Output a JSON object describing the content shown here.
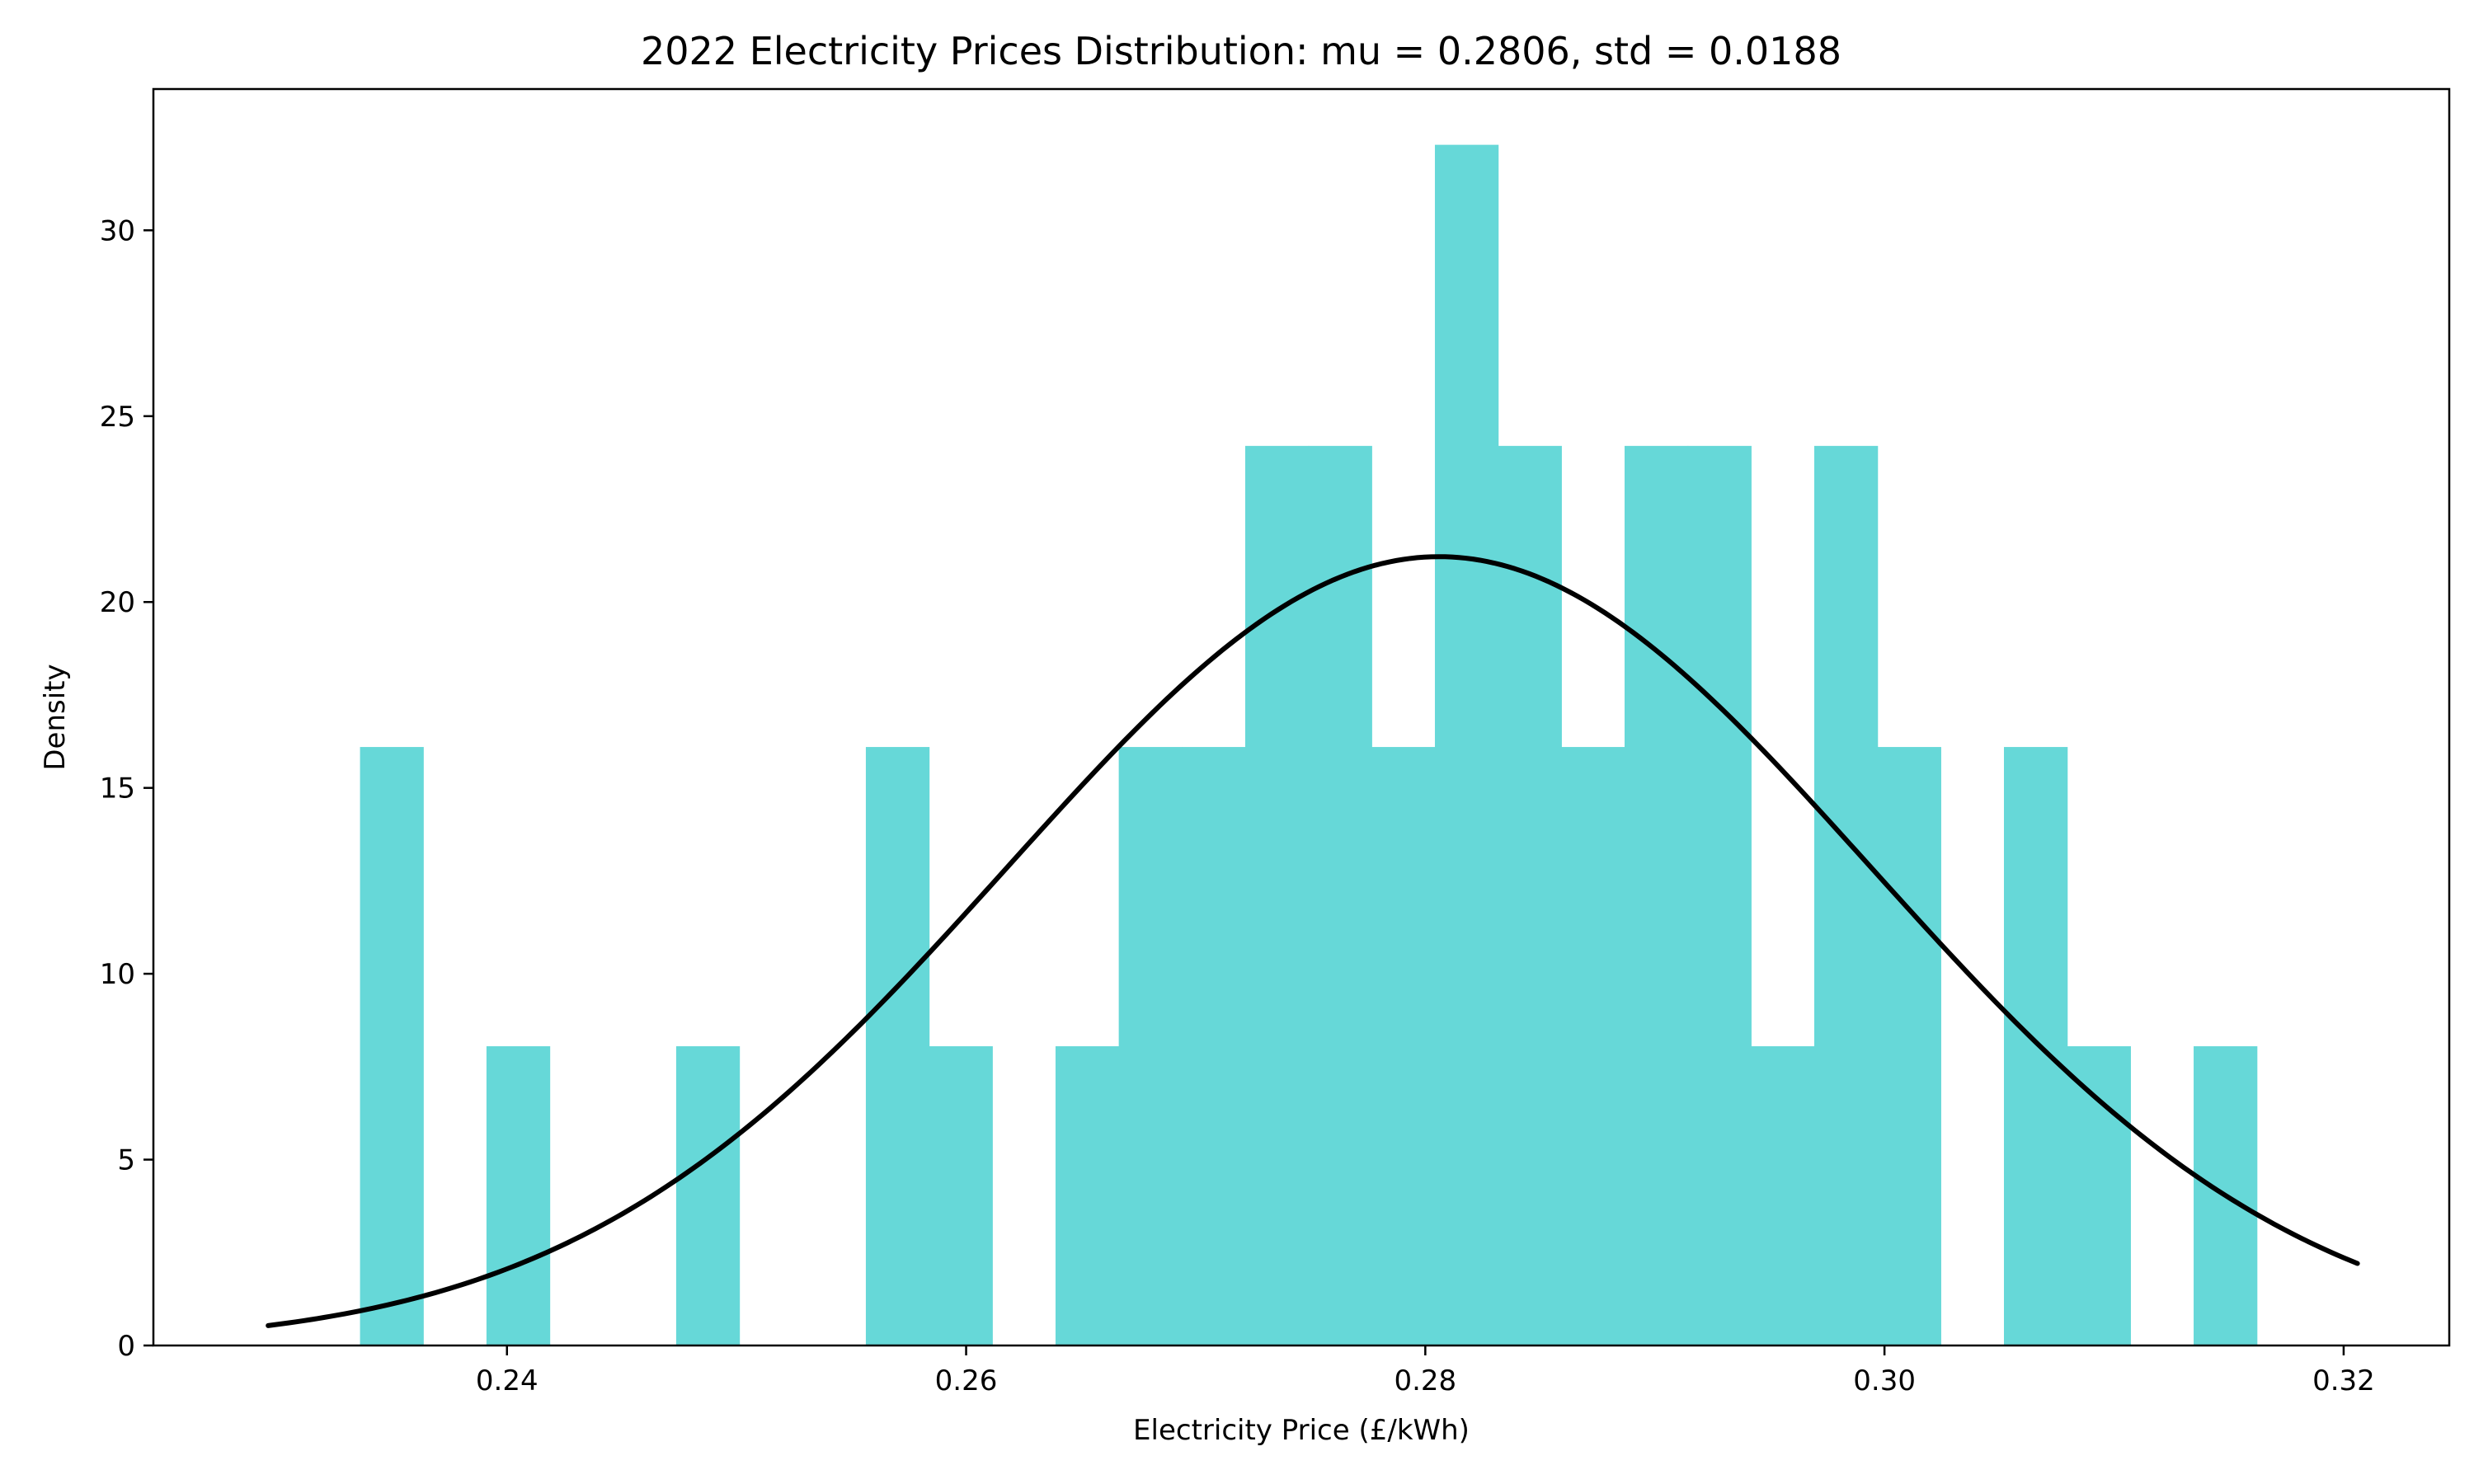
{
  "chart_data": {
    "type": "bar",
    "subtype": "histogram-with-normal-fit",
    "title": "2022 Electricity Prices Distribution: mu = 0.2806, std = 0.0188",
    "xlabel": "Electricity Price (£/kWh)",
    "ylabel": "Density",
    "xlim": [
      0.2246,
      0.3246
    ],
    "ylim": [
      0,
      33.8
    ],
    "xticks": [
      0.24,
      0.26,
      0.28,
      0.3,
      0.32
    ],
    "xtick_labels": [
      "0.24",
      "0.26",
      "0.28",
      "0.30",
      "0.32"
    ],
    "yticks": [
      0,
      5,
      10,
      15,
      20,
      25,
      30
    ],
    "ytick_labels": [
      "0",
      "5",
      "10",
      "15",
      "20",
      "25",
      "30"
    ],
    "grid": false,
    "legend": "none",
    "histogram": {
      "bin_start": 0.2336,
      "bin_width": 0.002754,
      "densities": [
        16.1,
        0,
        8.05,
        0,
        0,
        8.05,
        0,
        0,
        16.1,
        8.05,
        0,
        8.05,
        16.1,
        16.1,
        24.2,
        24.2,
        16.1,
        32.3,
        24.2,
        16.1,
        24.2,
        24.2,
        8.05,
        24.2,
        16.1,
        0,
        16.1,
        8.05,
        0,
        8.05
      ],
      "color": "#66d8d8"
    },
    "fit": {
      "name": "normal pdf",
      "mu": 0.2806,
      "std": 0.0188,
      "x_range": [
        0.2296,
        0.3206
      ],
      "color": "#000000"
    }
  }
}
